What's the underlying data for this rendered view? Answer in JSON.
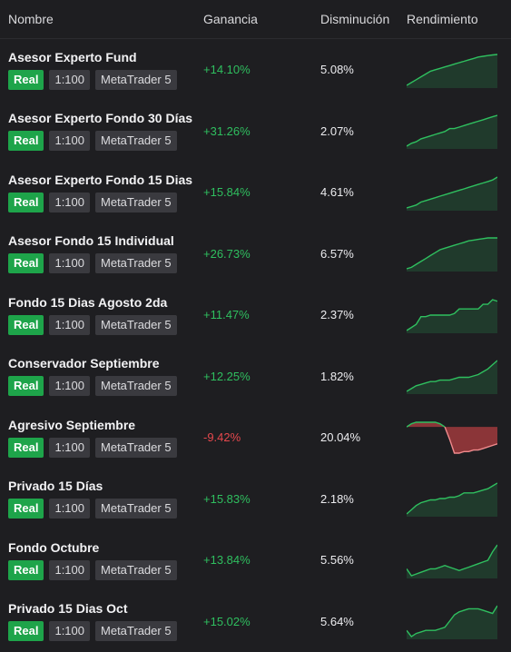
{
  "headers": {
    "name": "Nombre",
    "gain": "Ganancia",
    "drawdown": "Disminución",
    "performance": "Rendimiento"
  },
  "colors": {
    "positive": "#2fbf5f",
    "negative": "#e5484d",
    "real_badge": "#1ea44a"
  },
  "rows": [
    {
      "name": "Asesor Experto Fund",
      "badges": [
        "Real",
        "1:100",
        "MetaTrader 5"
      ],
      "gain": "+14.10%",
      "drawdown": "5.08%",
      "trend": "up",
      "spark": [
        0,
        2,
        4,
        6,
        8,
        10,
        11,
        12,
        13,
        14,
        15,
        16,
        17,
        18,
        19,
        20,
        20.5,
        21,
        21.5,
        21.8
      ]
    },
    {
      "name": "Asesor Experto Fondo 30 Días",
      "badges": [
        "Real",
        "1:100",
        "MetaTrader 5"
      ],
      "gain": "+31.26%",
      "drawdown": "2.07%",
      "trend": "up",
      "spark": [
        0,
        2,
        3,
        5,
        6,
        7,
        8,
        9,
        10,
        12,
        12,
        13,
        14,
        15,
        16,
        17,
        18,
        19,
        20,
        21
      ]
    },
    {
      "name": "Asesor Experto Fondo 15 Dias",
      "badges": [
        "Real",
        "1:100",
        "MetaTrader 5"
      ],
      "gain": "+15.84%",
      "drawdown": "4.61%",
      "trend": "up",
      "spark": [
        0,
        1,
        2,
        4,
        5,
        6,
        7,
        8,
        9,
        10,
        11,
        12,
        13,
        14,
        15,
        16,
        17,
        18,
        19,
        21
      ]
    },
    {
      "name": "Asesor Fondo 15 Individual",
      "badges": [
        "Real",
        "1:100",
        "MetaTrader 5"
      ],
      "gain": "+26.73%",
      "drawdown": "6.57%",
      "trend": "up",
      "spark": [
        0,
        1,
        3,
        5,
        7,
        9,
        11,
        13,
        14,
        15,
        16,
        17,
        18,
        19,
        19.5,
        20,
        20.5,
        21,
        21,
        21
      ]
    },
    {
      "name": "Fondo 15 Dias Agosto 2da",
      "badges": [
        "Real",
        "1:100",
        "MetaTrader 5"
      ],
      "gain": "+11.47%",
      "drawdown": "2.37%",
      "trend": "up",
      "spark": [
        0,
        2,
        4,
        9,
        9,
        10,
        10,
        10,
        10,
        10,
        11,
        14,
        14,
        14,
        14,
        14,
        17,
        17,
        20,
        19
      ]
    },
    {
      "name": "Conservador Septiembre",
      "badges": [
        "Real",
        "1:100",
        "MetaTrader 5"
      ],
      "gain": "+12.25%",
      "drawdown": "1.82%",
      "trend": "up",
      "spark": [
        0,
        2,
        4,
        5,
        6,
        7,
        7,
        8,
        8,
        8,
        9,
        10,
        10,
        10,
        11,
        12,
        14,
        16,
        19,
        22
      ]
    },
    {
      "name": "Agresivo Septiembre",
      "badges": [
        "Real",
        "1:100",
        "MetaTrader 5"
      ],
      "gain": "-9.42%",
      "drawdown": "20.04%",
      "trend": "down",
      "spark": [
        0,
        2,
        3,
        3,
        3,
        3,
        3,
        2,
        0,
        -8,
        -17,
        -17,
        -16,
        -16,
        -15,
        -15,
        -14,
        -13,
        -12,
        -11
      ]
    },
    {
      "name": "Privado 15 Días",
      "badges": [
        "Real",
        "1:100",
        "MetaTrader 5"
      ],
      "gain": "+15.83%",
      "drawdown": "2.18%",
      "trend": "up",
      "spark": [
        0,
        3,
        6,
        8,
        9,
        10,
        10,
        11,
        11,
        12,
        12,
        13,
        15,
        15,
        15,
        16,
        17,
        18,
        20,
        22
      ]
    },
    {
      "name": "Fondo Octubre",
      "badges": [
        "Real",
        "1:100",
        "MetaTrader 5"
      ],
      "gain": "+13.84%",
      "drawdown": "5.56%",
      "trend": "up",
      "spark": [
        4,
        0,
        1,
        2,
        3,
        4,
        4,
        5,
        6,
        5,
        4,
        3,
        4,
        5,
        6,
        7,
        8,
        9,
        14,
        18
      ]
    },
    {
      "name": "Privado 15 Dias Oct",
      "badges": [
        "Real",
        "1:100",
        "MetaTrader 5"
      ],
      "gain": "+15.02%",
      "drawdown": "5.64%",
      "trend": "up",
      "spark": [
        4,
        0,
        2,
        3,
        4,
        4,
        4,
        5,
        6,
        10,
        14,
        16,
        17,
        18,
        18,
        18,
        17,
        16,
        15,
        20
      ]
    }
  ]
}
